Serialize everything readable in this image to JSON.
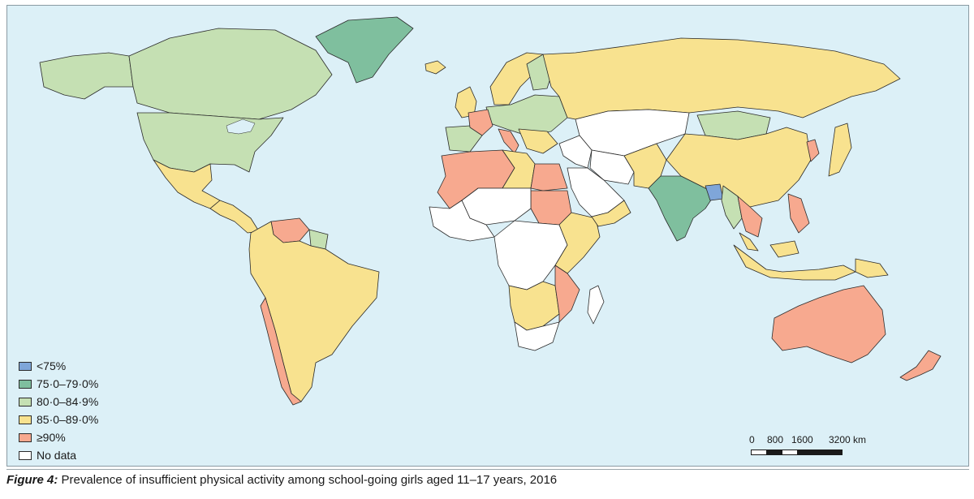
{
  "colors": {
    "ocean": "#dcf0f7",
    "lt75": "#7fa6d9",
    "c75_79": "#7fbf9e",
    "c80_84": "#c5e0b3",
    "c85_89": "#f8e28f",
    "ge90": "#f7a98f",
    "nodata": "#ffffff",
    "border": "#2b2b2b"
  },
  "legend": {
    "items": [
      {
        "label": "<75%",
        "color": "#7fa6d9"
      },
      {
        "label": "75·0–79·0%",
        "color": "#7fbf9e"
      },
      {
        "label": "80·0–84·9%",
        "color": "#c5e0b3"
      },
      {
        "label": "85·0–89·0%",
        "color": "#f8e28f"
      },
      {
        "label": "≥90%",
        "color": "#f7a98f"
      },
      {
        "label": "No data",
        "color": "#ffffff"
      }
    ]
  },
  "scale": {
    "labels": [
      "0",
      "800",
      "1600",
      "3200 km"
    ]
  },
  "caption": {
    "figure_label": "Figure 4:",
    "text": "Prevalence of insufficient physical activity among school-going girls aged 11–17 years, 2016"
  },
  "regions": [
    {
      "name": "canada",
      "category": "c80_84"
    },
    {
      "name": "alaska",
      "category": "c80_84"
    },
    {
      "name": "usa",
      "category": "c80_84"
    },
    {
      "name": "greenland",
      "category": "c75_79"
    },
    {
      "name": "mexico",
      "category": "c85_89"
    },
    {
      "name": "central-america",
      "category": "c85_89"
    },
    {
      "name": "venezuela",
      "category": "ge90"
    },
    {
      "name": "guianas",
      "category": "c80_84"
    },
    {
      "name": "south-america",
      "category": "c85_89"
    },
    {
      "name": "chile",
      "category": "ge90"
    },
    {
      "name": "iceland",
      "category": "c85_89"
    },
    {
      "name": "uk-ireland",
      "category": "c85_89"
    },
    {
      "name": "scandinavia",
      "category": "c85_89"
    },
    {
      "name": "finland",
      "category": "c80_84"
    },
    {
      "name": "europe-central",
      "category": "c80_84"
    },
    {
      "name": "iberia",
      "category": "c80_84"
    },
    {
      "name": "france",
      "category": "ge90"
    },
    {
      "name": "italy",
      "category": "ge90"
    },
    {
      "name": "balkans",
      "category": "c85_89"
    },
    {
      "name": "russia",
      "category": "c85_89"
    },
    {
      "name": "kazakhstan-central-asia",
      "category": "nodata"
    },
    {
      "name": "mongolia",
      "category": "c80_84"
    },
    {
      "name": "china",
      "category": "c85_89"
    },
    {
      "name": "korea",
      "category": "ge90"
    },
    {
      "name": "japan",
      "category": "c85_89"
    },
    {
      "name": "middle-east",
      "category": "nodata"
    },
    {
      "name": "iran",
      "category": "nodata"
    },
    {
      "name": "afghanistan-pakistan",
      "category": "c85_89"
    },
    {
      "name": "india",
      "category": "c75_79"
    },
    {
      "name": "bangladesh",
      "category": "lt75"
    },
    {
      "name": "myanmar",
      "category": "c80_84"
    },
    {
      "name": "indochina",
      "category": "ge90"
    },
    {
      "name": "philippines",
      "category": "ge90"
    },
    {
      "name": "indonesia",
      "category": "c85_89"
    },
    {
      "name": "malaysia",
      "category": "c85_89"
    },
    {
      "name": "north-africa-west",
      "category": "ge90"
    },
    {
      "name": "libya",
      "category": "c85_89"
    },
    {
      "name": "egypt",
      "category": "ge90"
    },
    {
      "name": "sudan",
      "category": "ge90"
    },
    {
      "name": "sahel",
      "category": "nodata"
    },
    {
      "name": "west-africa",
      "category": "nodata"
    },
    {
      "name": "central-africa",
      "category": "nodata"
    },
    {
      "name": "east-africa",
      "category": "c85_89"
    },
    {
      "name": "southern-africa",
      "category": "c85_89"
    },
    {
      "name": "mozambique",
      "category": "ge90"
    },
    {
      "name": "south-africa",
      "category": "nodata"
    },
    {
      "name": "madagascar",
      "category": "nodata"
    },
    {
      "name": "arabia",
      "category": "nodata"
    },
    {
      "name": "yemen-oman",
      "category": "c85_89"
    },
    {
      "name": "australia",
      "category": "ge90"
    },
    {
      "name": "new-zealand",
      "category": "ge90"
    },
    {
      "name": "png",
      "category": "c85_89"
    }
  ]
}
